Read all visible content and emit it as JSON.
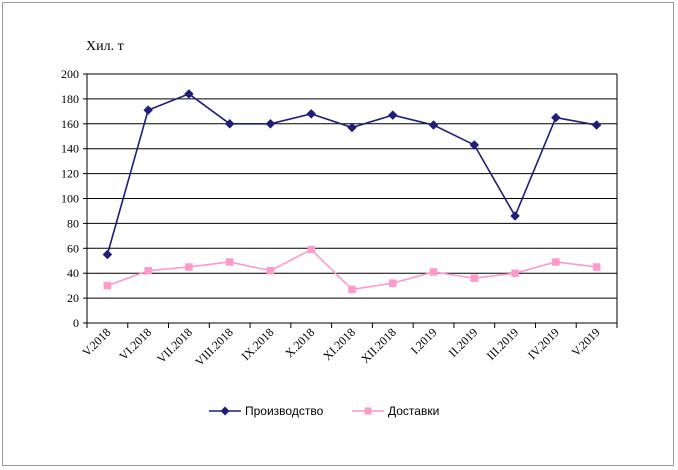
{
  "chart_data": {
    "type": "line",
    "ylabel": "Хил. т",
    "ylim": [
      0,
      200
    ],
    "yticks": [
      0,
      20,
      40,
      60,
      80,
      100,
      120,
      140,
      160,
      180,
      200
    ],
    "grid": "horizontal",
    "legend_position": "bottom",
    "categories": [
      "V.2018",
      "VI.2018",
      "VII.2018",
      "VIII.2018",
      "IX.2018",
      "X.2018",
      "XI.2018",
      "XII.2018",
      "I.2019",
      "II.2019",
      "III.2019",
      "IV.2019",
      "V.2019"
    ],
    "series": [
      {
        "name": "Производство",
        "color": "#1f1f7a",
        "marker": "diamond",
        "values": [
          55,
          171,
          184,
          160,
          160,
          168,
          157,
          167,
          159,
          143,
          86,
          165,
          159
        ]
      },
      {
        "name": "Доставки",
        "color": "#ff99cc",
        "marker": "square",
        "values": [
          30,
          42,
          45,
          49,
          42,
          59,
          27,
          32,
          41,
          36,
          40,
          49,
          45
        ]
      }
    ]
  }
}
